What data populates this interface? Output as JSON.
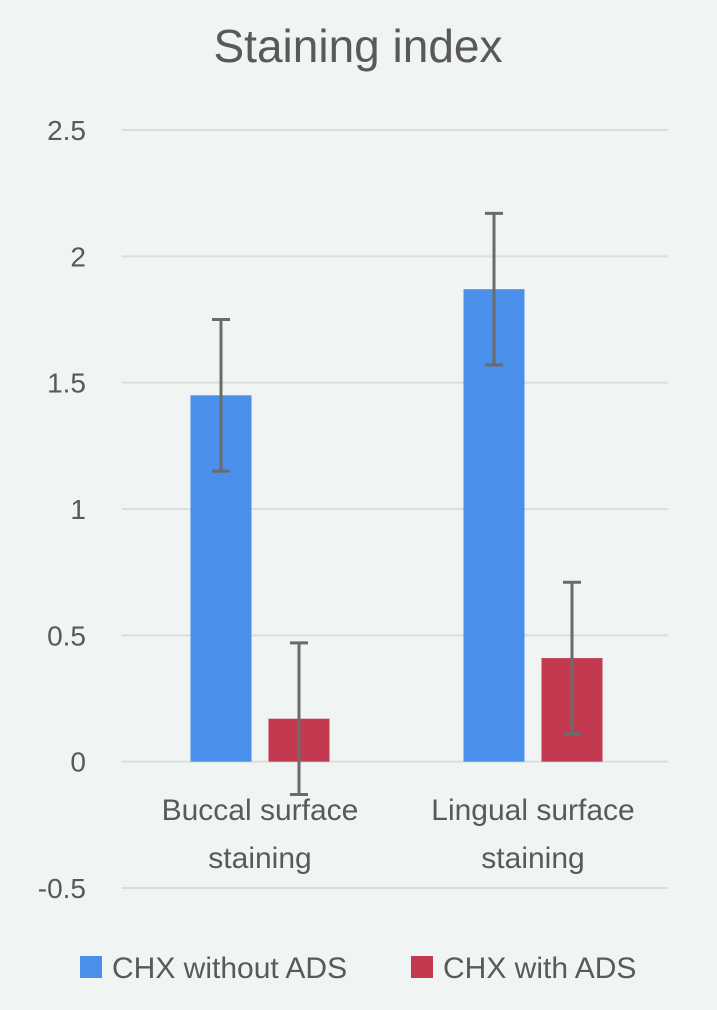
{
  "chart_data": {
    "type": "bar",
    "title": "Staining index",
    "categories": [
      "Buccal surface staining",
      "Lingual surface staining"
    ],
    "category_lines": [
      [
        "Buccal surface",
        "staining"
      ],
      [
        "Lingual surface",
        "staining"
      ]
    ],
    "series": [
      {
        "name": "CHX without ADS",
        "color": "#4a8fea",
        "values": [
          1.45,
          1.87
        ],
        "errors": [
          0.3,
          0.3
        ]
      },
      {
        "name": "CHX with ADS",
        "color": "#c33a50",
        "values": [
          0.17,
          0.41
        ],
        "errors": [
          0.3,
          0.3
        ]
      }
    ],
    "yticks": [
      "2.5",
      "2",
      "1.5",
      "1",
      "0.5",
      "0",
      "-0.5"
    ],
    "ylim": [
      -0.5,
      2.5
    ],
    "grid": true,
    "legend_position": "bottom",
    "error_bar_color": "#6b6b6b",
    "xlabel": "",
    "ylabel": ""
  }
}
